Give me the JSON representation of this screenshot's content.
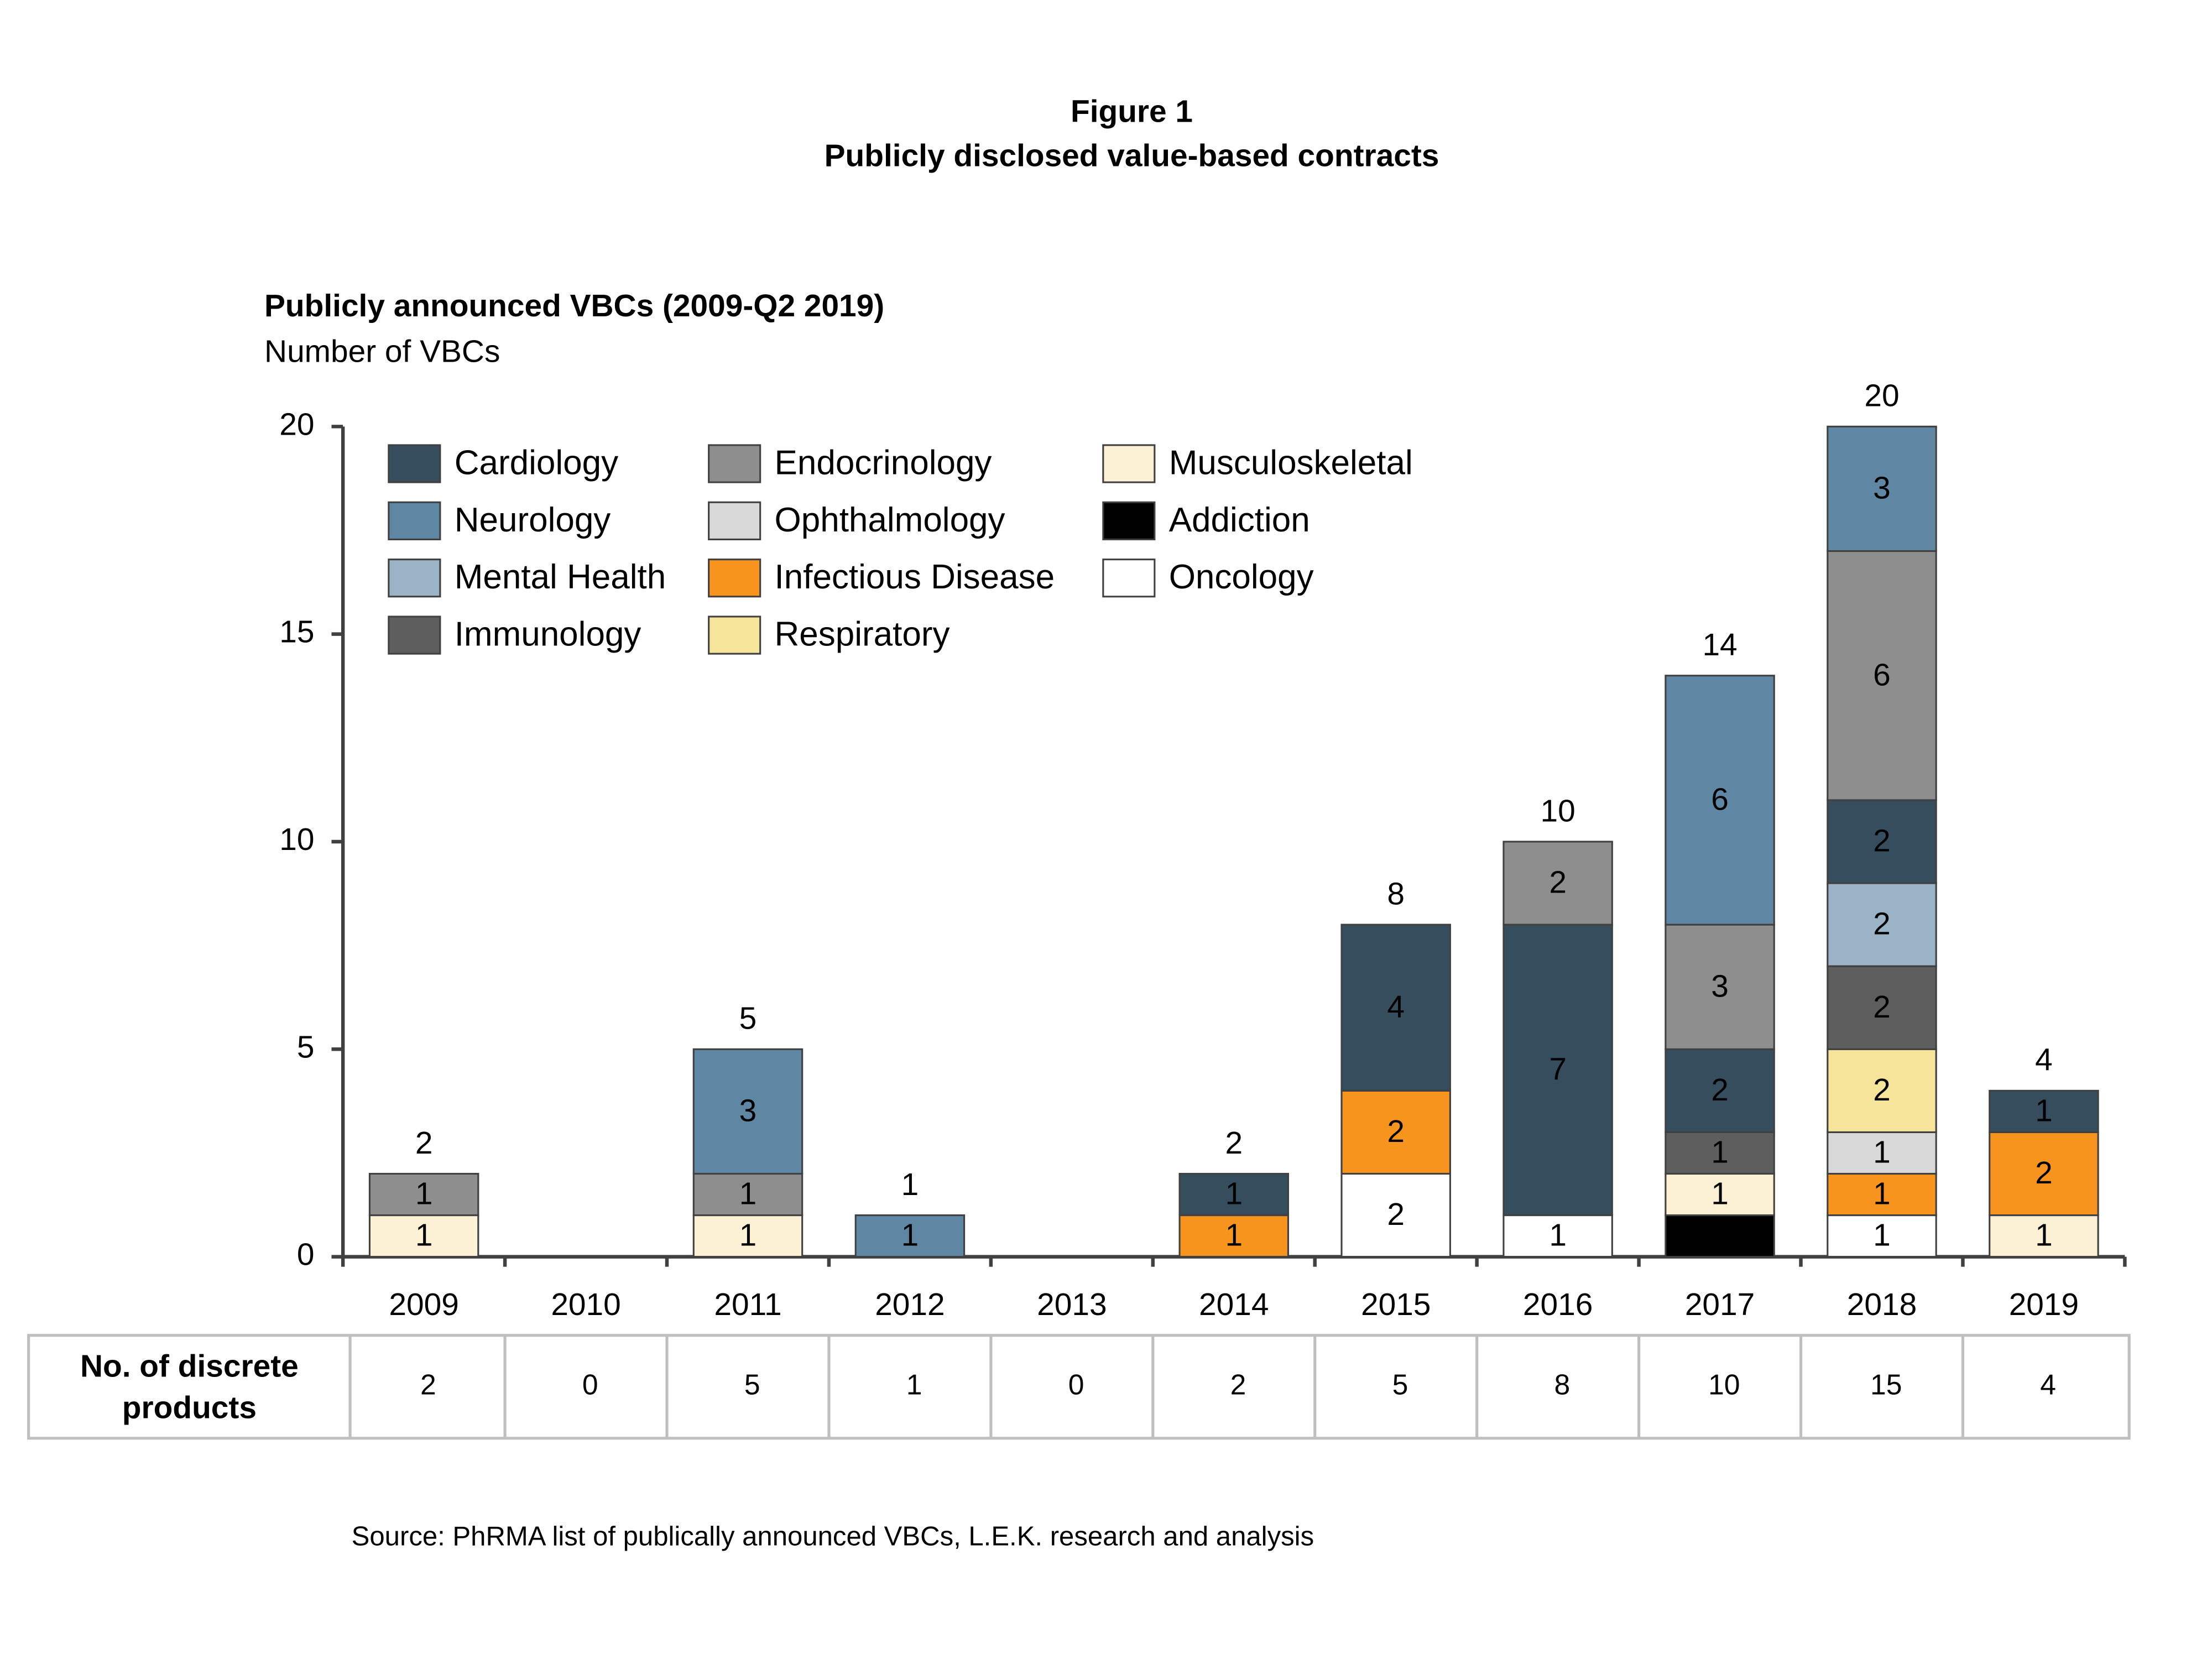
{
  "figure_label": "Figure 1",
  "figure_title": "Publicly disclosed value-based contracts",
  "source": "Source: PhRMA list of publically announced VBCs, L.E.K. research and analysis",
  "chart_data": {
    "type": "stacked_bar",
    "title": "Publicly announced VBCs (2009-Q2 2019)",
    "y_label": "Number of VBCs",
    "categories": [
      "2009",
      "2010",
      "2011",
      "2012",
      "2013",
      "2014",
      "2015",
      "2016",
      "2017",
      "2018",
      "2019"
    ],
    "ylim": [
      0,
      20
    ],
    "yticks": [
      0,
      5,
      10,
      15,
      20
    ],
    "series": [
      {
        "name": "Cardiology",
        "color": "#364d5d",
        "values": [
          0,
          0,
          0,
          0,
          0,
          1,
          4,
          7,
          2,
          2,
          1
        ]
      },
      {
        "name": "Neurology",
        "color": "#5f87a3",
        "values": [
          0,
          0,
          3,
          1,
          0,
          0,
          0,
          0,
          6,
          3,
          0
        ]
      },
      {
        "name": "Mental Health",
        "color": "#9ab3c7",
        "values": [
          0,
          0,
          0,
          0,
          0,
          0,
          0,
          0,
          0,
          2,
          0
        ]
      },
      {
        "name": "Immunology",
        "color": "#5e5e5e",
        "values": [
          0,
          0,
          0,
          0,
          0,
          0,
          0,
          0,
          1,
          2,
          0
        ]
      },
      {
        "name": "Endocrinology",
        "color": "#8e8e8e",
        "values": [
          1,
          0,
          1,
          0,
          0,
          0,
          0,
          2,
          3,
          6,
          0
        ]
      },
      {
        "name": "Ophthalmology",
        "color": "#d9d9d9",
        "values": [
          0,
          0,
          0,
          0,
          0,
          0,
          0,
          0,
          0,
          1,
          0
        ]
      },
      {
        "name": "Infectious Disease",
        "color": "#f7941d",
        "values": [
          0,
          0,
          0,
          0,
          0,
          1,
          2,
          0,
          0,
          1,
          2
        ]
      },
      {
        "name": "Respiratory",
        "color": "#f6e49a",
        "values": [
          0,
          0,
          0,
          0,
          0,
          0,
          0,
          0,
          0,
          2,
          0
        ]
      },
      {
        "name": "Musculoskeletal",
        "color": "#fcf1d4",
        "values": [
          1,
          0,
          1,
          0,
          0,
          0,
          0,
          0,
          1,
          0,
          1
        ]
      },
      {
        "name": "Addiction",
        "color": "#000000",
        "values": [
          0,
          0,
          0,
          0,
          0,
          0,
          0,
          0,
          1,
          0,
          0
        ]
      },
      {
        "name": "Oncology",
        "color": "#ffffff",
        "values": [
          0,
          0,
          0,
          0,
          0,
          0,
          2,
          1,
          0,
          1,
          0
        ]
      }
    ],
    "totals": [
      2,
      null,
      5,
      1,
      null,
      2,
      8,
      10,
      14,
      20,
      4
    ]
  },
  "table": {
    "header": "No. of discrete products",
    "values": [
      2,
      0,
      5,
      1,
      0,
      2,
      5,
      8,
      10,
      15,
      4
    ]
  }
}
